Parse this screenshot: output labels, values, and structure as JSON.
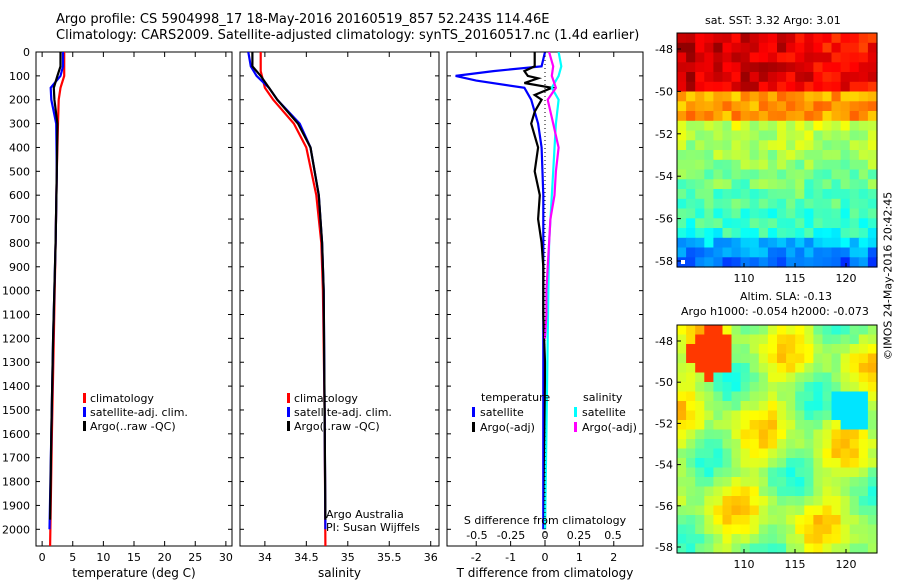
{
  "header": {
    "line1": "Argo profile: CS 5904998_17 18-May-2016 20160519_857 52.243S 114.46E",
    "line2": "Climatology: CARS2009. Satellite-adjusted climatology: synTS_20160517.nc (1.4d earlier)"
  },
  "maps": {
    "sst_title": "sat. SST: 3.32 Argo: 3.01",
    "sla_title1": "Altim. SLA: -0.13",
    "sla_title2": "Argo h1000: -0.054 h2000: -0.073",
    "lat_ticks": [
      "-48",
      "-50",
      "-52",
      "-54",
      "-56",
      "-58"
    ],
    "lon_ticks": [
      "110",
      "115",
      "120"
    ]
  },
  "stamp": "©IMOS 24-May-2016 20:42:45",
  "colors": {
    "climatology": "#ff0000",
    "satellite": "#0000ff",
    "argo": "#000000",
    "sal_sat": "#00ffff",
    "sal_argo": "#ff00ff"
  },
  "chart_data": [
    {
      "type": "line",
      "xlabel": "temperature (deg C)",
      "ylabel": "",
      "xlim": [
        -1,
        31
      ],
      "ylim": [
        2070,
        0
      ],
      "xticks": [
        "0",
        "5",
        "10",
        "15",
        "20",
        "25",
        "30"
      ],
      "yticks": [
        "0",
        "100",
        "200",
        "300",
        "400",
        "500",
        "600",
        "700",
        "800",
        "900",
        "1000",
        "1100",
        "1200",
        "1300",
        "1400",
        "1500",
        "1600",
        "1700",
        "1800",
        "1900",
        "2000"
      ],
      "legend": [
        "climatology",
        "satellite-adj. clim.",
        "Argo(..raw -QC)"
      ],
      "series": [
        {
          "name": "climatology",
          "depth": [
            0,
            60,
            100,
            150,
            200,
            300,
            500,
            800,
            1200,
            1600,
            2070
          ],
          "values": [
            3.6,
            3.6,
            3.6,
            3.0,
            2.7,
            2.6,
            2.4,
            2.2,
            1.9,
            1.6,
            1.3
          ]
        },
        {
          "name": "satellite-adj. clim.",
          "depth": [
            0,
            60,
            100,
            150,
            200,
            300,
            500,
            800,
            1200,
            1600,
            2000
          ],
          "values": [
            3.4,
            3.4,
            3.0,
            1.4,
            1.5,
            2.3,
            2.4,
            2.2,
            1.8,
            1.5,
            1.2
          ]
        },
        {
          "name": "Argo(..raw -QC)",
          "depth": [
            0,
            60,
            100,
            150,
            200,
            300,
            500,
            800,
            1200,
            1600,
            1960
          ],
          "values": [
            3.0,
            3.0,
            2.5,
            1.9,
            2.0,
            2.5,
            2.4,
            2.2,
            1.8,
            1.5,
            1.3
          ]
        }
      ]
    },
    {
      "type": "line",
      "xlabel": "salinity",
      "xlim": [
        33.7,
        36.1
      ],
      "ylim": [
        2070,
        0
      ],
      "xticks": [
        "34",
        "34.5",
        "35",
        "35.5",
        "36"
      ],
      "legend": [
        "climatology",
        "satellite-adj. clim.",
        "Argo(..raw -QC)"
      ],
      "annotation": [
        "Argo Australia",
        "PI: Susan Wijffels"
      ],
      "series": [
        {
          "name": "climatology",
          "depth": [
            0,
            80,
            150,
            200,
            300,
            400,
            600,
            800,
            1000,
            1500,
            2070
          ],
          "values": [
            33.95,
            33.95,
            34.0,
            34.1,
            34.35,
            34.5,
            34.62,
            34.68,
            34.7,
            34.72,
            34.73
          ]
        },
        {
          "name": "satellite-adj. clim.",
          "depth": [
            0,
            60,
            100,
            150,
            200,
            300,
            400,
            600,
            800,
            1000,
            1500,
            2000
          ],
          "values": [
            33.8,
            33.83,
            33.9,
            34.05,
            34.15,
            34.42,
            34.55,
            34.65,
            34.69,
            34.71,
            34.72,
            34.73
          ]
        },
        {
          "name": "Argo(..raw -QC)",
          "depth": [
            0,
            60,
            100,
            150,
            200,
            300,
            400,
            600,
            800,
            1000,
            1500,
            1960
          ],
          "values": [
            33.85,
            33.85,
            33.95,
            34.05,
            34.15,
            34.4,
            34.55,
            34.65,
            34.69,
            34.71,
            34.72,
            34.73
          ]
        }
      ]
    },
    {
      "type": "line",
      "xlabel": "T difference from climatology",
      "xlabel2": "S difference from climatology",
      "xlim": [
        -2.85,
        2.85
      ],
      "xlim_s": [
        -0.72,
        0.72
      ],
      "ylim": [
        2070,
        0
      ],
      "xticks": [
        "-2",
        "-1",
        "0",
        "1",
        "2"
      ],
      "xticks_s": [
        "-0.5",
        "-0.25",
        "0",
        "0.25",
        "0.5"
      ],
      "legend_headers": [
        "temperature",
        "salinity"
      ],
      "legend": [
        "satellite",
        "Argo(-adj)",
        "satellite",
        "Argo(-adj)"
      ],
      "series": [
        {
          "name": "temperature satellite",
          "depth": [
            0,
            60,
            80,
            100,
            120,
            150,
            200,
            300,
            400,
            600,
            1000,
            1500,
            2000
          ],
          "values": [
            0.0,
            -0.1,
            -1.5,
            -2.6,
            -2.0,
            -0.6,
            -0.4,
            -0.2,
            -0.1,
            -0.05,
            -0.05,
            -0.05,
            -0.05
          ]
        },
        {
          "name": "temperature Argo(-adj)",
          "depth": [
            0,
            60,
            80,
            100,
            110,
            130,
            150,
            180,
            200,
            250,
            300,
            400,
            500,
            600,
            700,
            800,
            900,
            1000,
            1100,
            1300,
            1600,
            2000
          ],
          "values": [
            -0.3,
            -0.3,
            -0.6,
            -0.5,
            -0.2,
            -0.6,
            0.2,
            -0.3,
            -0.1,
            -0.3,
            -0.4,
            -0.2,
            -0.3,
            -0.15,
            -0.2,
            -0.1,
            -0.05,
            -0.05,
            -0.05,
            0.0,
            0.0,
            0.0
          ]
        },
        {
          "name": "salinity satellite",
          "depth": [
            0,
            60,
            100,
            150,
            200,
            300,
            500,
            800,
            1200,
            1600,
            2000
          ],
          "values": [
            0.1,
            0.12,
            0.1,
            0.05,
            0.1,
            0.08,
            0.06,
            0.03,
            0.02,
            0.01,
            0.0
          ]
        },
        {
          "name": "salinity Argo(-adj)",
          "depth": [
            0,
            60,
            100,
            150,
            200,
            300,
            400,
            500,
            600,
            700,
            800,
            900,
            1000,
            1100,
            1200
          ],
          "values": [
            0.03,
            0.06,
            0.05,
            0.08,
            0.02,
            0.06,
            0.1,
            0.08,
            0.07,
            0.04,
            0.03,
            0.02,
            0.01,
            0.01,
            0.0
          ]
        }
      ]
    }
  ]
}
